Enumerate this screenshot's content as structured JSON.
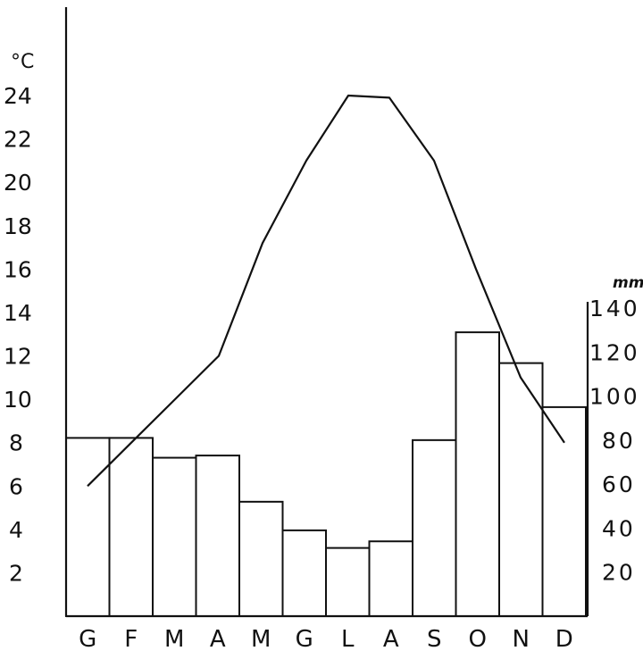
{
  "chart_data": {
    "type": "bar+line",
    "categories": [
      "G",
      "F",
      "M",
      "A",
      "M",
      "G",
      "L",
      "A",
      "S",
      "O",
      "N",
      "D"
    ],
    "series": [
      {
        "kind": "bar",
        "axis": "right",
        "values": [
          81,
          81,
          72,
          73,
          52,
          39,
          31,
          34,
          80,
          129,
          115,
          95
        ]
      },
      {
        "kind": "line",
        "axis": "left",
        "values": [
          6.0,
          8.0,
          10.0,
          12.0,
          17.2,
          21.0,
          24.0,
          23.9,
          21.0,
          16.0,
          11.0,
          8.0
        ]
      }
    ],
    "left_axis": {
      "unit": "°C",
      "ticks": [
        2,
        4,
        6,
        8,
        10,
        12,
        14,
        16,
        18,
        20,
        22,
        24
      ],
      "range": [
        0,
        24
      ]
    },
    "right_axis": {
      "unit": "mm",
      "ticks": [
        20,
        40,
        60,
        80,
        100,
        120,
        140
      ],
      "range": [
        0,
        140
      ]
    },
    "colors": {
      "ink": "#111111",
      "bar_fill": "#ffffff"
    },
    "grid": false
  }
}
